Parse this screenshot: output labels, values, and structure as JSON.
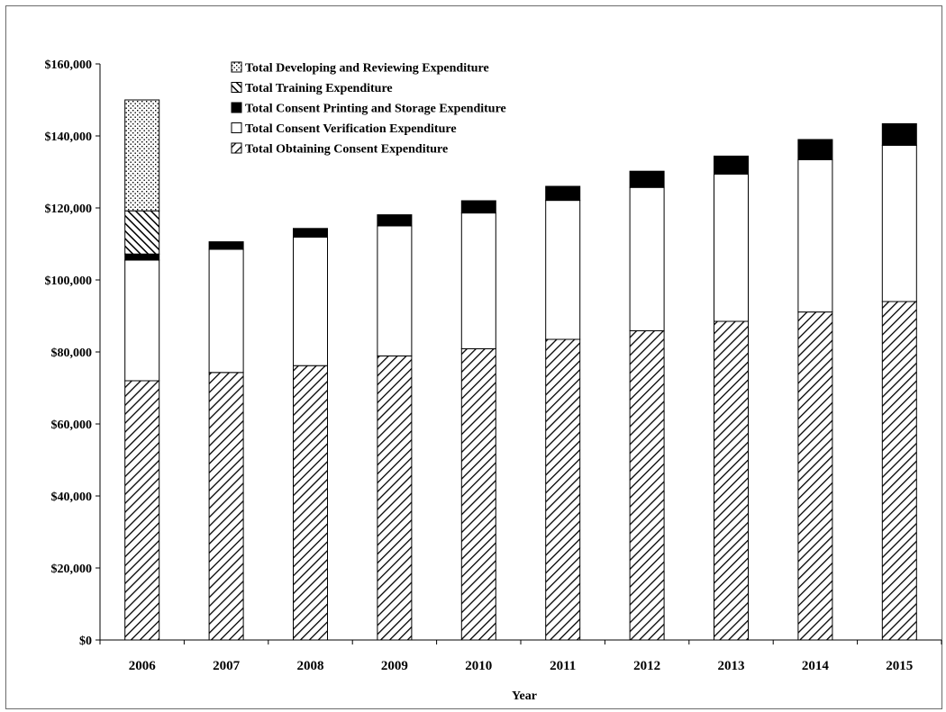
{
  "chart_data": {
    "type": "bar",
    "stacked": true,
    "title": "",
    "xlabel": "Year",
    "ylabel": "",
    "ylim": [
      0,
      160000
    ],
    "yticks": [
      0,
      20000,
      40000,
      60000,
      80000,
      100000,
      120000,
      140000,
      160000
    ],
    "ytick_labels": [
      "$0",
      "$20,000",
      "$40,000",
      "$60,000",
      "$80,000",
      "$100,000",
      "$120,000",
      "$140,000",
      "$160,000"
    ],
    "categories": [
      "2006",
      "2007",
      "2008",
      "2009",
      "2010",
      "2011",
      "2012",
      "2013",
      "2014",
      "2015"
    ],
    "grid": false,
    "legend_position": "top-left",
    "series": [
      {
        "name": "Total Obtaining Consent Expenditure",
        "pattern": "diagonal-hatch",
        "values": [
          72000,
          74300,
          76200,
          78900,
          80900,
          83500,
          85900,
          88500,
          91100,
          94000
        ]
      },
      {
        "name": "Total Consent Verification Expenditure",
        "pattern": "white",
        "values": [
          33500,
          34200,
          35700,
          36100,
          37700,
          38600,
          39800,
          40900,
          42300,
          43400
        ]
      },
      {
        "name": "Total Consent Printing and Storage Expenditure",
        "pattern": "solid-black",
        "values": [
          1700,
          2100,
          2400,
          3100,
          3400,
          3900,
          4500,
          5000,
          5600,
          6000
        ]
      },
      {
        "name": "Total Training Expenditure",
        "pattern": "cross-hatch",
        "values": [
          12000,
          0,
          0,
          0,
          0,
          0,
          0,
          0,
          0,
          0
        ]
      },
      {
        "name": "Total Developing and Reviewing Expenditure",
        "pattern": "dotted",
        "values": [
          30800,
          0,
          0,
          0,
          0,
          0,
          0,
          0,
          0,
          0
        ]
      }
    ],
    "legend_order": [
      "Total Developing and Reviewing Expenditure",
      "Total Training Expenditure",
      "Total Consent Printing and Storage Expenditure",
      "Total Consent Verification Expenditure",
      "Total Obtaining Consent Expenditure"
    ],
    "colors": {
      "stroke": "#000000",
      "fill": "#ffffff",
      "solid": "#000000"
    }
  }
}
